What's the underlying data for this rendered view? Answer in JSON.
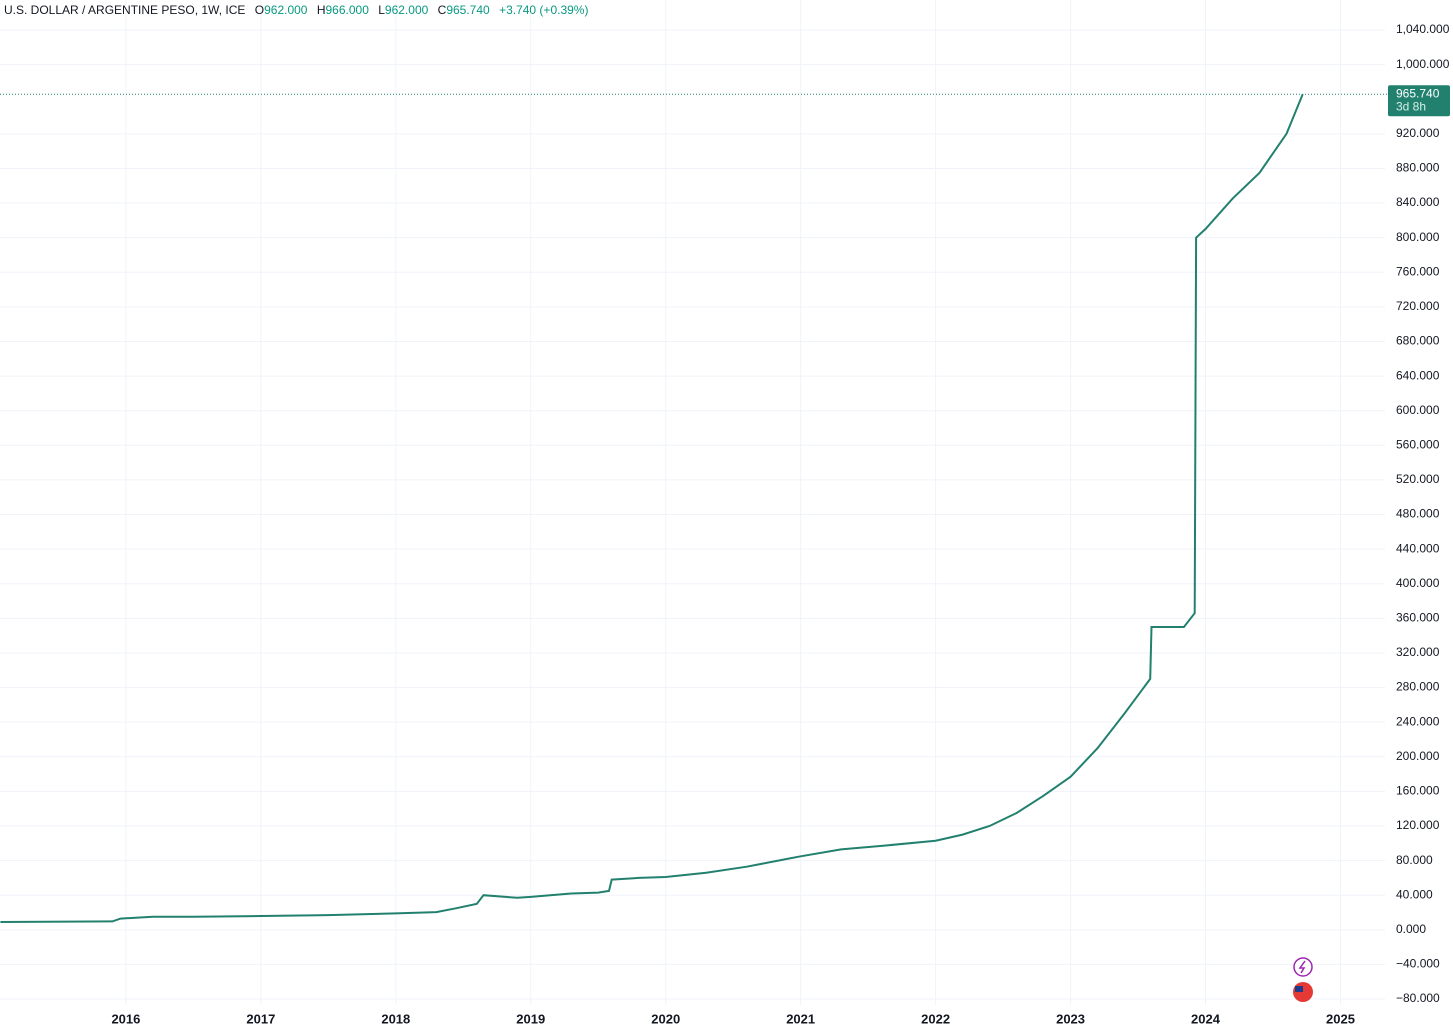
{
  "header": {
    "title": "U.S. DOLLAR / ARGENTINE PESO, 1W, ICE",
    "open_label": "O",
    "open": "962.000",
    "high_label": "H",
    "high": "966.000",
    "low_label": "L",
    "low": "962.000",
    "close_label": "C",
    "close": "965.740",
    "change": "+3.740 (+0.39%)"
  },
  "chart_data": {
    "type": "line",
    "color": "#22806f",
    "grid": true,
    "x": [
      2015.07,
      2015.9,
      2015.96,
      2016.2,
      2016.5,
      2017.0,
      2017.5,
      2018.0,
      2018.3,
      2018.45,
      2018.6,
      2018.65,
      2018.9,
      2019.0,
      2019.3,
      2019.5,
      2019.58,
      2019.6,
      2019.8,
      2020.0,
      2020.3,
      2020.6,
      2020.9,
      2021.0,
      2021.3,
      2021.6,
      2022.0,
      2022.2,
      2022.4,
      2022.6,
      2022.8,
      2023.0,
      2023.2,
      2023.4,
      2023.59,
      2023.6,
      2023.84,
      2023.92,
      2023.93,
      2024.0,
      2024.2,
      2024.4,
      2024.6,
      2024.72
    ],
    "values": [
      9,
      9.7,
      13,
      15,
      15,
      16,
      17,
      19,
      20.5,
      25,
      30,
      40,
      37,
      38,
      42,
      43,
      45,
      58,
      60,
      61,
      66,
      73,
      82,
      85,
      93,
      97,
      103,
      110,
      120,
      135,
      155,
      177,
      210,
      250,
      290,
      350,
      350,
      366,
      800,
      810,
      845,
      875,
      920,
      965.74
    ],
    "xlim": [
      2015.067,
      2025.33
    ],
    "xticks": [
      2016,
      2017,
      2018,
      2019,
      2020,
      2021,
      2022,
      2023,
      2024,
      2025
    ],
    "ylim": [
      -86.9,
      1074.7
    ],
    "yticks": [
      {
        "value": 1040,
        "label": "1,040.000"
      },
      {
        "value": 1000,
        "label": "1,000.000"
      },
      {
        "value": 920,
        "label": "920.000"
      },
      {
        "value": 880,
        "label": "880.000"
      },
      {
        "value": 840,
        "label": "840.000"
      },
      {
        "value": 800,
        "label": "800.000"
      },
      {
        "value": 760,
        "label": "760.000"
      },
      {
        "value": 720,
        "label": "720.000"
      },
      {
        "value": 680,
        "label": "680.000"
      },
      {
        "value": 640,
        "label": "640.000"
      },
      {
        "value": 600,
        "label": "600.000"
      },
      {
        "value": 560,
        "label": "560.000"
      },
      {
        "value": 520,
        "label": "520.000"
      },
      {
        "value": 480,
        "label": "480.000"
      },
      {
        "value": 440,
        "label": "440.000"
      },
      {
        "value": 400,
        "label": "400.000"
      },
      {
        "value": 360,
        "label": "360.000"
      },
      {
        "value": 320,
        "label": "320.000"
      },
      {
        "value": 280,
        "label": "280.000"
      },
      {
        "value": 240,
        "label": "240.000"
      },
      {
        "value": 200,
        "label": "200.000"
      },
      {
        "value": 160,
        "label": "160.000"
      },
      {
        "value": 120,
        "label": "120.000"
      },
      {
        "value": 80,
        "label": "80.000"
      },
      {
        "value": 40,
        "label": "40.000"
      },
      {
        "value": 0,
        "label": "0.000"
      },
      {
        "value": -40,
        "label": "−40.000"
      },
      {
        "value": -80,
        "label": "−80.000"
      }
    ],
    "last_price": {
      "value": 965.74,
      "label": "965.740"
    },
    "countdown": "3d 8h"
  }
}
